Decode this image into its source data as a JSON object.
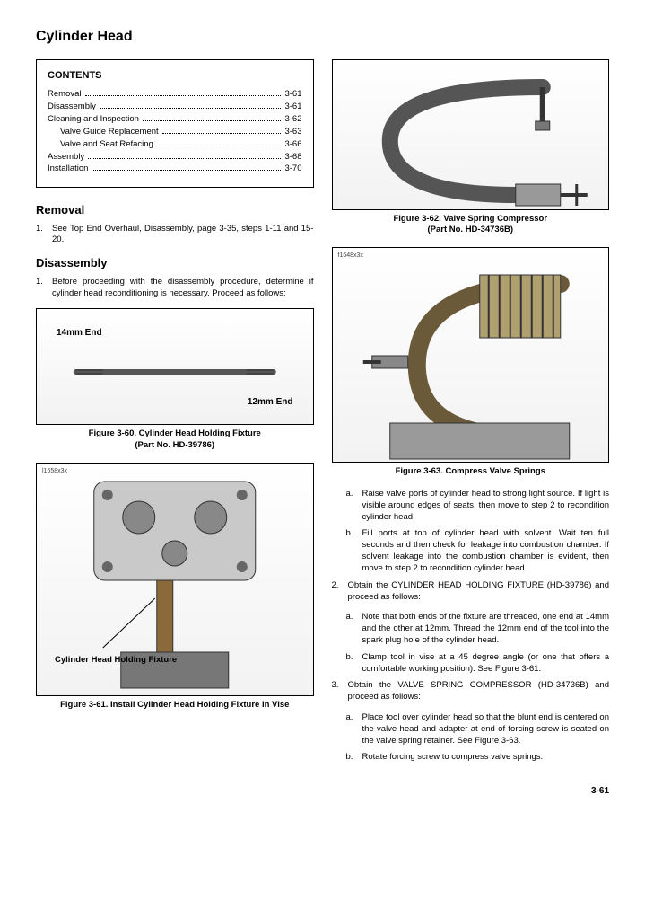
{
  "title": "Cylinder Head",
  "contents": {
    "heading": "CONTENTS",
    "items": [
      {
        "label": "Removal",
        "page": "3-61",
        "indent": false
      },
      {
        "label": "Disassembly",
        "page": "3-61",
        "indent": false
      },
      {
        "label": "Cleaning and Inspection",
        "page": "3-62",
        "indent": false
      },
      {
        "label": "Valve Guide Replacement",
        "page": "3-63",
        "indent": true
      },
      {
        "label": "Valve and Seat Refacing",
        "page": "3-66",
        "indent": true
      },
      {
        "label": "Assembly",
        "page": "3-68",
        "indent": false
      },
      {
        "label": "Installation",
        "page": "3-70",
        "indent": false
      }
    ]
  },
  "removal": {
    "heading": "Removal",
    "steps": [
      {
        "n": "1.",
        "text": "See Top End Overhaul, Disassembly, page 3-35, steps 1-11 and 15-20."
      }
    ]
  },
  "disassembly": {
    "heading": "Disassembly",
    "intro": {
      "n": "1.",
      "text": "Before proceeding with the disassembly procedure, determine if cylinder head reconditioning is necessary. Proceed as follows:"
    }
  },
  "fig60": {
    "label14": "14mm End",
    "label12": "12mm End",
    "caption": "Figure 3-60. Cylinder Head Holding Fixture",
    "caption2": "(Part No. HD-39786)"
  },
  "fig61": {
    "ref": "l1658x3x",
    "callout": "Cylinder Head\nHolding Fixture",
    "caption": "Figure 3-61. Install Cylinder Head Holding Fixture in Vise"
  },
  "fig62": {
    "caption": "Figure 3-62. Valve Spring Compressor",
    "caption2": "(Part No. HD-34736B)"
  },
  "fig63": {
    "ref": "f1648x3x",
    "caption": "Figure 3-63. Compress Valve Springs"
  },
  "rightSteps": {
    "sub_ab": [
      {
        "n": "a.",
        "text": "Raise valve ports of cylinder head to strong light source. If light is visible around edges of seats, then move to step 2 to recondition cylinder head."
      },
      {
        "n": "b.",
        "text": "Fill ports at top of cylinder head with solvent. Wait ten full seconds and then check for leakage into combustion chamber. If solvent leakage into the combustion chamber is evident, then move to step 2 to recondition cylinder head."
      }
    ],
    "step2": {
      "n": "2.",
      "text": "Obtain the CYLINDER HEAD HOLDING FIXTURE (HD-39786) and proceed as follows:"
    },
    "step2sub": [
      {
        "n": "a.",
        "text": "Note that both ends of the fixture are threaded, one end at 14mm and the other at 12mm. Thread the 12mm end of the tool into the spark plug hole of the cylinder head."
      },
      {
        "n": "b.",
        "text": "Clamp tool in vise at a 45 degree angle (or one that offers a comfortable working position). See Figure 3-61."
      }
    ],
    "step3": {
      "n": "3.",
      "text": "Obtain the VALVE SPRING COMPRESSOR (HD-34736B) and proceed as follows:"
    },
    "step3sub": [
      {
        "n": "a.",
        "text": "Place tool over cylinder head so that the blunt end is centered on the valve head and adapter at end of forcing screw is seated on the valve spring retainer. See Figure 3-63."
      },
      {
        "n": "b.",
        "text": "Rotate forcing screw to compress valve springs."
      }
    ]
  },
  "pageNumber": "3-61",
  "style": {
    "border_color": "#000000",
    "text_color": "#000000",
    "bg": "#ffffff",
    "body_fontsize": 10,
    "title_fontsize": 16,
    "heading_fontsize": 13
  }
}
